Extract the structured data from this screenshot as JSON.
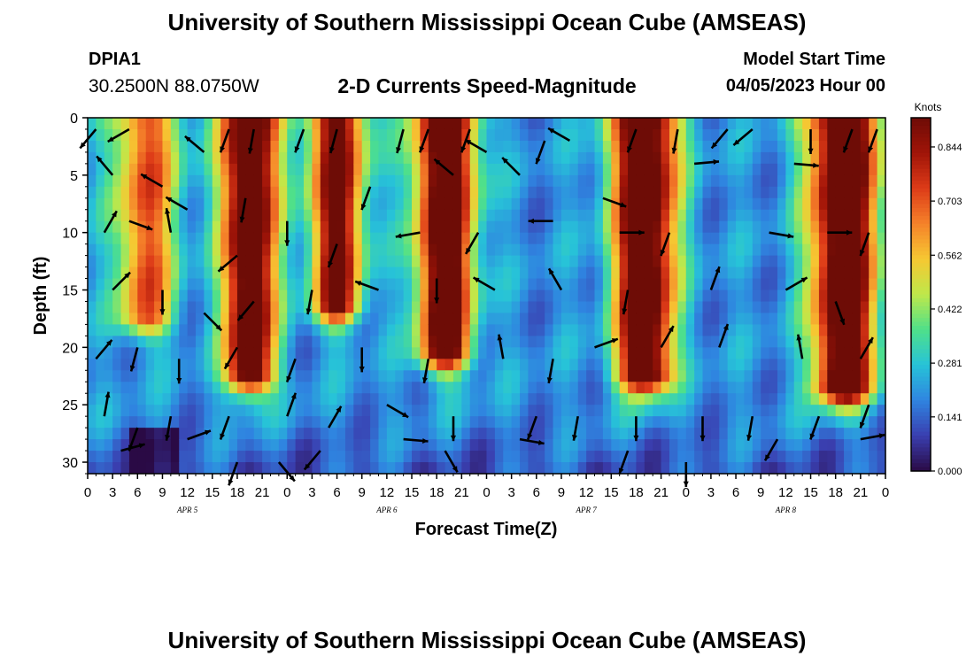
{
  "header": {
    "title": "University of Southern Mississippi Ocean Cube (AMSEAS)",
    "station_id": "DPIA1",
    "station_coords": "30.2500N  88.0750W",
    "subtitle": "2-D Currents Speed-Magnitude",
    "model_start_label": "Model Start Time",
    "model_start_value": "04/05/2023 Hour 00"
  },
  "footer": {
    "title": "University of Southern Mississippi Ocean Cube (AMSEAS)"
  },
  "chart_data": {
    "type": "heatmap",
    "title": "2-D Currents Speed-Magnitude",
    "xlabel": "Forecast Time(Z)",
    "ylabel": "Depth (ft)",
    "x_range_hours": [
      0,
      96
    ],
    "ylim": [
      0,
      31
    ],
    "y_ticks": [
      0,
      5,
      10,
      15,
      20,
      25,
      30
    ],
    "x_ticks": [
      {
        "hour": 0,
        "label": "0"
      },
      {
        "hour": 3,
        "label": "3"
      },
      {
        "hour": 6,
        "label": "6"
      },
      {
        "hour": 9,
        "label": "9"
      },
      {
        "hour": 12,
        "label": "12"
      },
      {
        "hour": 15,
        "label": "15"
      },
      {
        "hour": 18,
        "label": "18"
      },
      {
        "hour": 21,
        "label": "21"
      },
      {
        "hour": 24,
        "label": "0"
      },
      {
        "hour": 27,
        "label": "3"
      },
      {
        "hour": 30,
        "label": "6"
      },
      {
        "hour": 33,
        "label": "9"
      },
      {
        "hour": 36,
        "label": "12"
      },
      {
        "hour": 39,
        "label": "15"
      },
      {
        "hour": 42,
        "label": "18"
      },
      {
        "hour": 45,
        "label": "21"
      },
      {
        "hour": 48,
        "label": "0"
      },
      {
        "hour": 51,
        "label": "3"
      },
      {
        "hour": 54,
        "label": "6"
      },
      {
        "hour": 57,
        "label": "9"
      },
      {
        "hour": 60,
        "label": "12"
      },
      {
        "hour": 63,
        "label": "15"
      },
      {
        "hour": 66,
        "label": "18"
      },
      {
        "hour": 69,
        "label": "21"
      },
      {
        "hour": 72,
        "label": "0"
      },
      {
        "hour": 75,
        "label": "3"
      },
      {
        "hour": 78,
        "label": "6"
      },
      {
        "hour": 81,
        "label": "9"
      },
      {
        "hour": 84,
        "label": "12"
      },
      {
        "hour": 87,
        "label": "15"
      },
      {
        "hour": 90,
        "label": "18"
      },
      {
        "hour": 93,
        "label": "21"
      },
      {
        "hour": 96,
        "label": "0"
      }
    ],
    "day_labels": [
      {
        "hour": 12,
        "label": "APR 5"
      },
      {
        "hour": 36,
        "label": "APR 6"
      },
      {
        "hour": 60,
        "label": "APR 7"
      },
      {
        "hour": 84,
        "label": "APR 8"
      }
    ],
    "colorbar": {
      "unit": "Knots",
      "ticks": [
        0.0,
        0.141,
        0.281,
        0.422,
        0.562,
        0.703,
        0.844
      ],
      "tick_labels": [
        "0.000",
        "0.141",
        "0.281",
        "0.422",
        "0.562",
        "0.703",
        "0.844"
      ],
      "range": [
        0,
        0.92
      ]
    },
    "colormap": [
      "#2a0a45",
      "#3a3fb0",
      "#2f84e0",
      "#27c3d8",
      "#4fe08a",
      "#bfe84a",
      "#f6c832",
      "#f5822a",
      "#dd3b18",
      "#a01408",
      "#6e0c06"
    ],
    "peaks": [
      {
        "hour": 7,
        "width": 3.2,
        "amp": 0.52,
        "bottom": 18
      },
      {
        "hour": 19.5,
        "width": 2.8,
        "amp": 0.88,
        "bottom": 23
      },
      {
        "hour": 30,
        "width": 2.8,
        "amp": 0.74,
        "bottom": 17
      },
      {
        "hour": 43,
        "width": 3.0,
        "amp": 0.88,
        "bottom": 21
      },
      {
        "hour": 67,
        "width": 3.2,
        "amp": 0.9,
        "bottom": 23
      },
      {
        "hour": 91,
        "width": 3.4,
        "amp": 0.92,
        "bottom": 24
      }
    ],
    "arrows": [
      {
        "hour": 1,
        "depth": 1,
        "dir": 220
      },
      {
        "hour": 5,
        "depth": 1,
        "dir": 240
      },
      {
        "hour": 9,
        "depth": 6,
        "dir": 300
      },
      {
        "hour": 14,
        "depth": 3,
        "dir": 310
      },
      {
        "hour": 17,
        "depth": 1,
        "dir": 200
      },
      {
        "hour": 20,
        "depth": 1,
        "dir": 190
      },
      {
        "hour": 26,
        "depth": 1,
        "dir": 200
      },
      {
        "hour": 30,
        "depth": 1,
        "dir": 195
      },
      {
        "hour": 38,
        "depth": 1,
        "dir": 195
      },
      {
        "hour": 41,
        "depth": 1,
        "dir": 200
      },
      {
        "hour": 46,
        "depth": 1,
        "dir": 200
      },
      {
        "hour": 48,
        "depth": 3,
        "dir": 300
      },
      {
        "hour": 55,
        "depth": 2,
        "dir": 200
      },
      {
        "hour": 58,
        "depth": 2,
        "dir": 300
      },
      {
        "hour": 66,
        "depth": 1,
        "dir": 200
      },
      {
        "hour": 71,
        "depth": 1,
        "dir": 190
      },
      {
        "hour": 77,
        "depth": 1,
        "dir": 220
      },
      {
        "hour": 80,
        "depth": 1,
        "dir": 230
      },
      {
        "hour": 87,
        "depth": 1,
        "dir": 180
      },
      {
        "hour": 92,
        "depth": 1,
        "dir": 200
      },
      {
        "hour": 95,
        "depth": 1,
        "dir": 200
      },
      {
        "hour": 3,
        "depth": 5,
        "dir": 320
      },
      {
        "hour": 12,
        "depth": 8,
        "dir": 300
      },
      {
        "hour": 19,
        "depth": 7,
        "dir": 190
      },
      {
        "hour": 34,
        "depth": 6,
        "dir": 200
      },
      {
        "hour": 44,
        "depth": 5,
        "dir": 310
      },
      {
        "hour": 52,
        "depth": 5,
        "dir": 315
      },
      {
        "hour": 62,
        "depth": 7,
        "dir": 110
      },
      {
        "hour": 73,
        "depth": 4,
        "dir": 85
      },
      {
        "hour": 85,
        "depth": 4,
        "dir": 95
      },
      {
        "hour": 2,
        "depth": 10,
        "dir": 30
      },
      {
        "hour": 5,
        "depth": 9,
        "dir": 110
      },
      {
        "hour": 10,
        "depth": 10,
        "dir": 350
      },
      {
        "hour": 18,
        "depth": 12,
        "dir": 230
      },
      {
        "hour": 24,
        "depth": 9,
        "dir": 180
      },
      {
        "hour": 30,
        "depth": 11,
        "dir": 200
      },
      {
        "hour": 40,
        "depth": 10,
        "dir": 260
      },
      {
        "hour": 47,
        "depth": 10,
        "dir": 210
      },
      {
        "hour": 56,
        "depth": 9,
        "dir": 270
      },
      {
        "hour": 64,
        "depth": 10,
        "dir": 90
      },
      {
        "hour": 70,
        "depth": 10,
        "dir": 200
      },
      {
        "hour": 82,
        "depth": 10,
        "dir": 100
      },
      {
        "hour": 89,
        "depth": 10,
        "dir": 90
      },
      {
        "hour": 94,
        "depth": 10,
        "dir": 200
      },
      {
        "hour": 3,
        "depth": 15,
        "dir": 45
      },
      {
        "hour": 9,
        "depth": 15,
        "dir": 180
      },
      {
        "hour": 14,
        "depth": 17,
        "dir": 135
      },
      {
        "hour": 20,
        "depth": 16,
        "dir": 220
      },
      {
        "hour": 27,
        "depth": 15,
        "dir": 190
      },
      {
        "hour": 35,
        "depth": 15,
        "dir": 290
      },
      {
        "hour": 42,
        "depth": 14,
        "dir": 180
      },
      {
        "hour": 49,
        "depth": 15,
        "dir": 300
      },
      {
        "hour": 57,
        "depth": 15,
        "dir": 330
      },
      {
        "hour": 65,
        "depth": 15,
        "dir": 190
      },
      {
        "hour": 75,
        "depth": 15,
        "dir": 20
      },
      {
        "hour": 84,
        "depth": 15,
        "dir": 60
      },
      {
        "hour": 90,
        "depth": 16,
        "dir": 160
      },
      {
        "hour": 1,
        "depth": 21,
        "dir": 40
      },
      {
        "hour": 6,
        "depth": 20,
        "dir": 195
      },
      {
        "hour": 11,
        "depth": 21,
        "dir": 180
      },
      {
        "hour": 18,
        "depth": 20,
        "dir": 210
      },
      {
        "hour": 25,
        "depth": 21,
        "dir": 200
      },
      {
        "hour": 33,
        "depth": 20,
        "dir": 180
      },
      {
        "hour": 41,
        "depth": 21,
        "dir": 190
      },
      {
        "hour": 50,
        "depth": 21,
        "dir": 350
      },
      {
        "hour": 56,
        "depth": 21,
        "dir": 190
      },
      {
        "hour": 61,
        "depth": 20,
        "dir": 70
      },
      {
        "hour": 69,
        "depth": 20,
        "dir": 30
      },
      {
        "hour": 76,
        "depth": 20,
        "dir": 20
      },
      {
        "hour": 86,
        "depth": 21,
        "dir": 350
      },
      {
        "hour": 93,
        "depth": 21,
        "dir": 30
      },
      {
        "hour": 2,
        "depth": 26,
        "dir": 10
      },
      {
        "hour": 6,
        "depth": 27,
        "dir": 200
      },
      {
        "hour": 10,
        "depth": 26,
        "dir": 190
      },
      {
        "hour": 17,
        "depth": 26,
        "dir": 200
      },
      {
        "hour": 24,
        "depth": 26,
        "dir": 20
      },
      {
        "hour": 29,
        "depth": 27,
        "dir": 30
      },
      {
        "hour": 36,
        "depth": 25,
        "dir": 120
      },
      {
        "hour": 44,
        "depth": 26,
        "dir": 180
      },
      {
        "hour": 54,
        "depth": 26,
        "dir": 200
      },
      {
        "hour": 59,
        "depth": 26,
        "dir": 190
      },
      {
        "hour": 66,
        "depth": 26,
        "dir": 180
      },
      {
        "hour": 74,
        "depth": 26,
        "dir": 180
      },
      {
        "hour": 80,
        "depth": 26,
        "dir": 190
      },
      {
        "hour": 88,
        "depth": 26,
        "dir": 200
      },
      {
        "hour": 94,
        "depth": 25,
        "dir": 200
      },
      {
        "hour": 4,
        "depth": 29,
        "dir": 75
      },
      {
        "hour": 12,
        "depth": 28,
        "dir": 70
      },
      {
        "hour": 18,
        "depth": 30,
        "dir": 200
      },
      {
        "hour": 23,
        "depth": 30,
        "dir": 140
      },
      {
        "hour": 28,
        "depth": 29,
        "dir": 220
      },
      {
        "hour": 38,
        "depth": 28,
        "dir": 95
      },
      {
        "hour": 43,
        "depth": 29,
        "dir": 150
      },
      {
        "hour": 52,
        "depth": 28,
        "dir": 100
      },
      {
        "hour": 65,
        "depth": 29,
        "dir": 200
      },
      {
        "hour": 72,
        "depth": 30,
        "dir": 180
      },
      {
        "hour": 83,
        "depth": 28,
        "dir": 210
      },
      {
        "hour": 93,
        "depth": 28,
        "dir": 80
      }
    ]
  }
}
